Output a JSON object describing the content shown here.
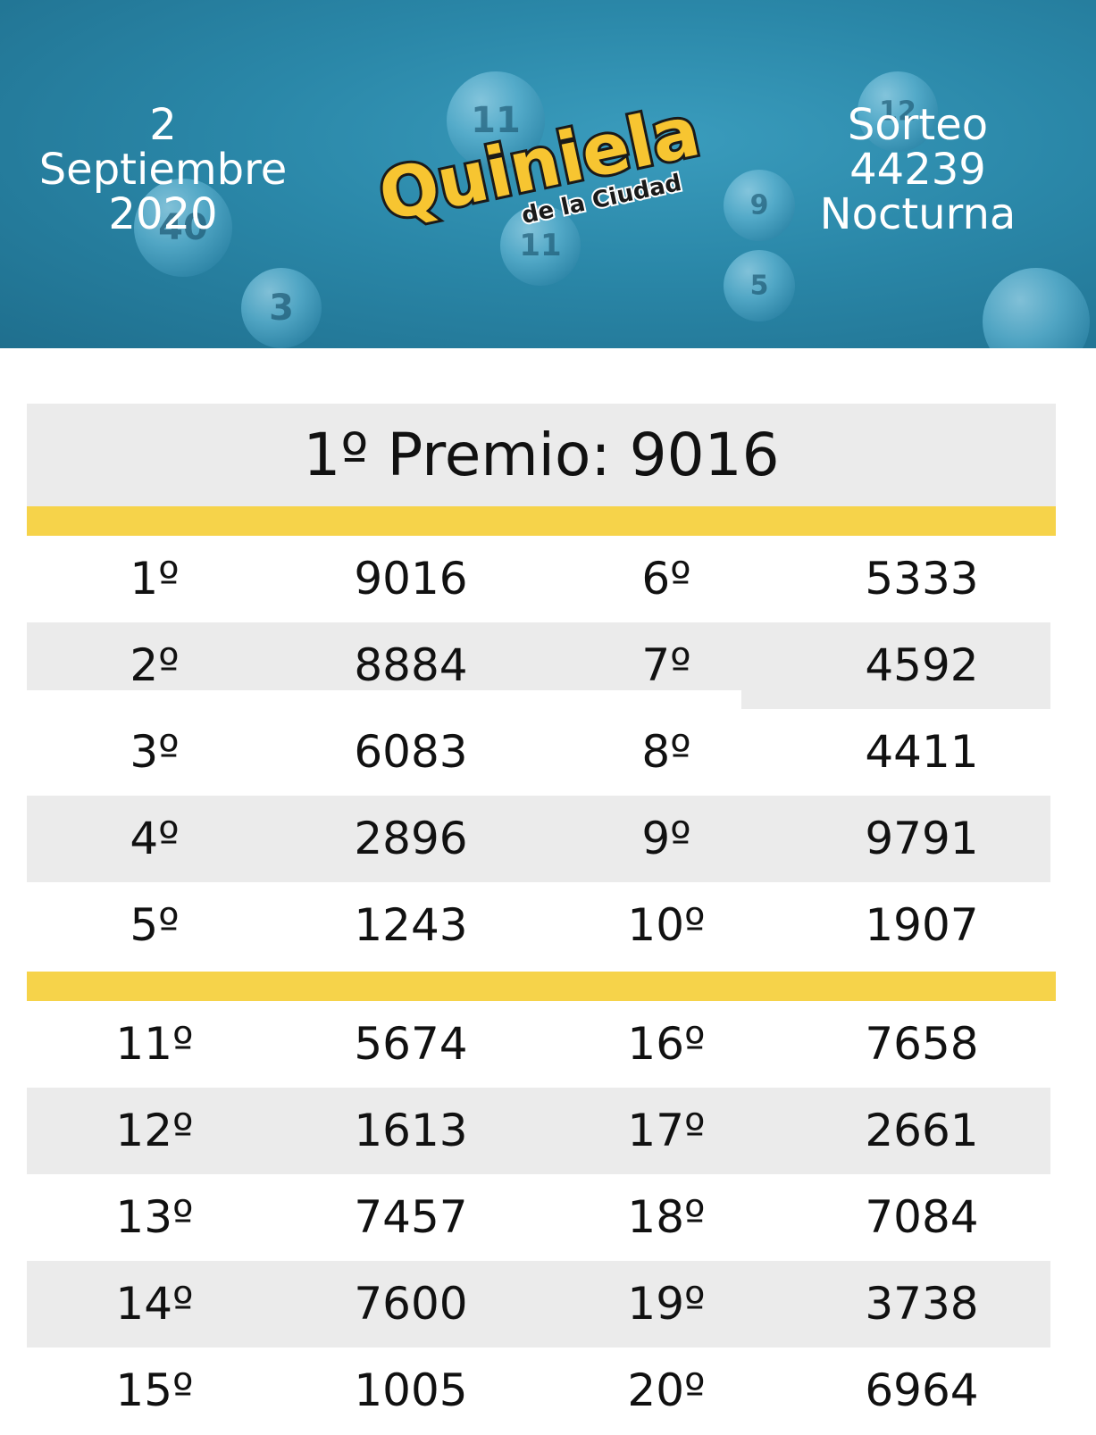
{
  "header": {
    "date_line1": "2",
    "date_line2": "Septiembre",
    "date_line3": "2020",
    "draw_line1": "Sorteo",
    "draw_line2": "44239",
    "draw_line3": "Nocturna",
    "logo_main": "Quiniela",
    "logo_sub": "de la Ciudad"
  },
  "first_prize": "1º Premio: 9016",
  "colors": {
    "header_blue": "#2a87a8",
    "accent_yellow": "#f6d34a",
    "row_gray": "#ebebeb",
    "logo_yellow": "#f7c531"
  },
  "results_block_1": [
    {
      "pos_a": "1º",
      "num_a": "9016",
      "pos_b": "6º",
      "num_b": "5333"
    },
    {
      "pos_a": "2º",
      "num_a": "8884",
      "pos_b": "7º",
      "num_b": "4592"
    },
    {
      "pos_a": "3º",
      "num_a": "6083",
      "pos_b": "8º",
      "num_b": "4411"
    },
    {
      "pos_a": "4º",
      "num_a": "2896",
      "pos_b": "9º",
      "num_b": "9791"
    },
    {
      "pos_a": "5º",
      "num_a": "1243",
      "pos_b": "10º",
      "num_b": "1907"
    }
  ],
  "results_block_2": [
    {
      "pos_a": "11º",
      "num_a": "5674",
      "pos_b": "16º",
      "num_b": "7658"
    },
    {
      "pos_a": "12º",
      "num_a": "1613",
      "pos_b": "17º",
      "num_b": "2661"
    },
    {
      "pos_a": "13º",
      "num_a": "7457",
      "pos_b": "18º",
      "num_b": "7084"
    },
    {
      "pos_a": "14º",
      "num_a": "7600",
      "pos_b": "19º",
      "num_b": "3738"
    },
    {
      "pos_a": "15º",
      "num_a": "1005",
      "pos_b": "20º",
      "num_b": "6964"
    }
  ]
}
